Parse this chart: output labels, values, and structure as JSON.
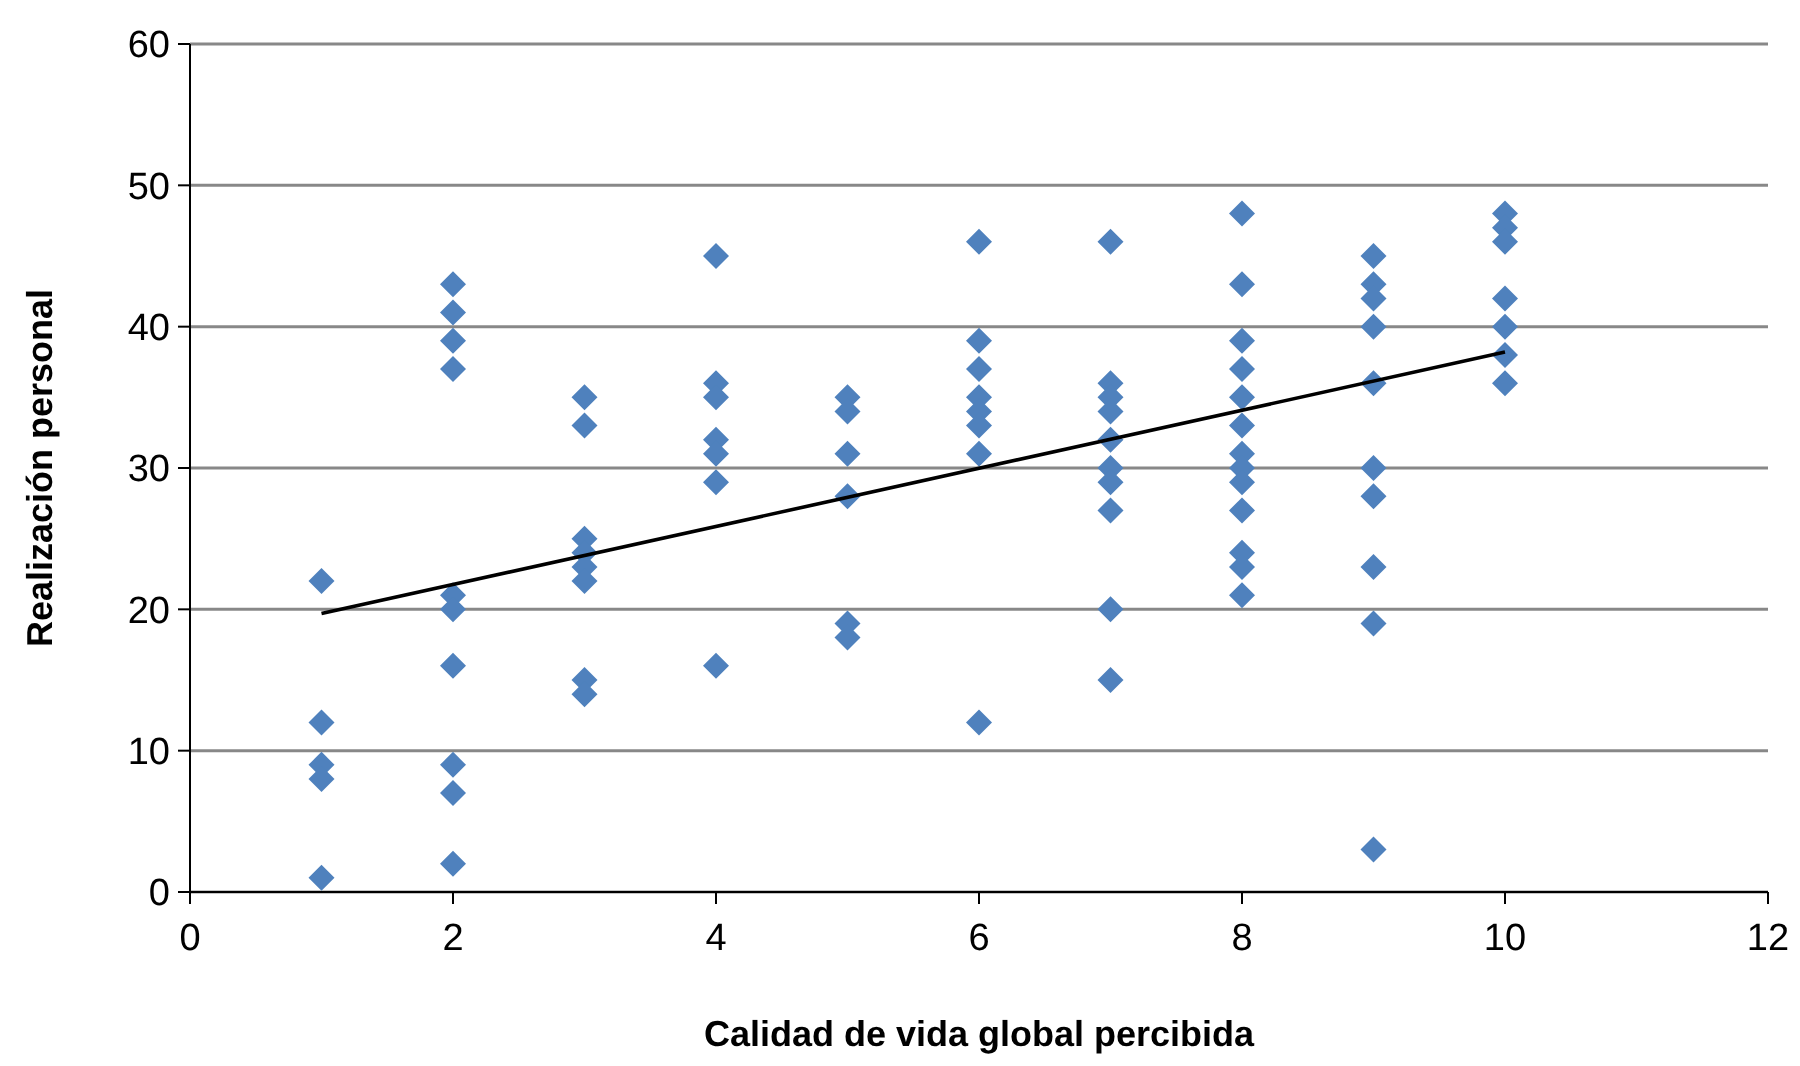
{
  "chart_data": {
    "type": "scatter",
    "xlabel": "Calidad de vida global percibida",
    "ylabel": "Realización personal",
    "xlim": [
      0,
      12
    ],
    "xticks": [
      0,
      2,
      4,
      6,
      8,
      10,
      12
    ],
    "ylim": [
      0,
      60
    ],
    "yticks": [
      0,
      10,
      20,
      30,
      40,
      50,
      60
    ],
    "grid": "y",
    "marker": "diamond",
    "series": [
      {
        "color": "#4f81bd",
        "x": [
          1,
          1,
          1,
          1,
          1,
          2,
          2,
          2,
          2,
          2,
          2,
          2,
          2,
          2,
          2,
          3,
          3,
          3,
          3,
          3,
          3,
          3,
          3,
          4,
          4,
          4,
          4,
          4,
          4,
          4,
          5,
          5,
          5,
          5,
          5,
          5,
          6,
          6,
          6,
          6,
          6,
          6,
          6,
          6,
          7,
          7,
          7,
          7,
          7,
          7,
          7,
          7,
          7,
          7,
          8,
          8,
          8,
          8,
          8,
          8,
          8,
          8,
          8,
          8,
          8,
          8,
          8,
          9,
          9,
          9,
          9,
          9,
          9,
          9,
          9,
          9,
          9,
          10,
          10,
          10,
          10,
          10,
          10,
          10
        ],
        "values": [
          22,
          12,
          9,
          8,
          1,
          43,
          41,
          39,
          37,
          21,
          20,
          16,
          9,
          7,
          2,
          35,
          33,
          25,
          24,
          23,
          22,
          15,
          14,
          45,
          36,
          35,
          32,
          31,
          29,
          16,
          35,
          34,
          31,
          28,
          19,
          18,
          46,
          39,
          37,
          35,
          34,
          33,
          31,
          12,
          46,
          36,
          35,
          34,
          32,
          30,
          29,
          27,
          20,
          15,
          48,
          43,
          39,
          37,
          35,
          33,
          31,
          30,
          29,
          27,
          24,
          23,
          21,
          45,
          43,
          42,
          40,
          36,
          30,
          28,
          23,
          19,
          3,
          48,
          47,
          46,
          42,
          40,
          38,
          36
        ]
      },
      {
        "type": "line",
        "color": "#000000",
        "marker": "none",
        "x": [
          1,
          10
        ],
        "values": [
          19.7,
          38.2
        ]
      }
    ]
  }
}
